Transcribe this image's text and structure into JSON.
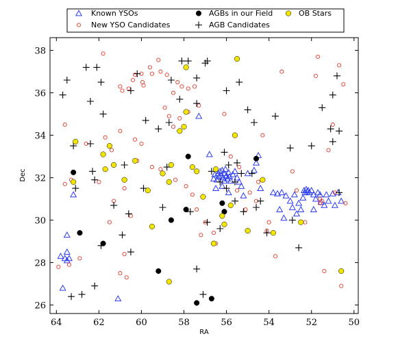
{
  "chart_data": {
    "type": "scatter",
    "title": "",
    "xlabel": "RA",
    "ylabel": "Dec",
    "xlim": [
      64.3,
      49.8
    ],
    "ylim": [
      25.6,
      38.6
    ],
    "x_ticks": [
      64,
      62,
      60,
      58,
      56,
      54,
      52,
      50
    ],
    "y_ticks": [
      26,
      28,
      30,
      32,
      34,
      36,
      38
    ],
    "grid": false,
    "legend_placement": "top-center",
    "series": [
      {
        "name": "Known YSOs",
        "marker": "triangle-open",
        "color": "#2b3cf0",
        "points": [
          [
            63.8,
            28.3
          ],
          [
            63.6,
            28.2
          ],
          [
            63.5,
            28.5
          ],
          [
            63.5,
            28.1
          ],
          [
            63.4,
            28.2
          ],
          [
            63.7,
            26.8
          ],
          [
            63.5,
            29.3
          ],
          [
            63.2,
            31.2
          ],
          [
            61.1,
            26.3
          ],
          [
            57.3,
            34.9
          ],
          [
            56.8,
            33.1
          ],
          [
            56.4,
            32.2
          ],
          [
            56.35,
            32.05
          ],
          [
            56.3,
            32.3
          ],
          [
            56.25,
            32.1
          ],
          [
            56.2,
            32.35
          ],
          [
            56.15,
            32.0
          ],
          [
            56.1,
            32.2
          ],
          [
            56.05,
            32.4
          ],
          [
            56.0,
            32.1
          ],
          [
            55.95,
            31.95
          ],
          [
            55.9,
            32.25
          ],
          [
            55.85,
            32.05
          ],
          [
            56.45,
            31.9
          ],
          [
            56.55,
            32.15
          ],
          [
            56.6,
            31.95
          ],
          [
            56.1,
            31.85
          ],
          [
            55.8,
            31.85
          ],
          [
            55.7,
            32.15
          ],
          [
            55.6,
            32.3
          ],
          [
            55.5,
            32.0
          ],
          [
            55.4,
            31.8
          ],
          [
            55.3,
            31.6
          ],
          [
            55.0,
            32.2
          ],
          [
            54.7,
            32.35
          ],
          [
            56.2,
            31.6
          ],
          [
            56.5,
            31.5
          ],
          [
            55.9,
            31.3
          ],
          [
            55.2,
            31.15
          ],
          [
            54.6,
            32.7
          ],
          [
            54.5,
            33.05
          ],
          [
            54.4,
            31.5
          ],
          [
            53.8,
            31.3
          ],
          [
            53.6,
            31.25
          ],
          [
            53.4,
            31.3
          ],
          [
            53.2,
            31.15
          ],
          [
            53.0,
            30.9
          ],
          [
            52.9,
            30.6
          ],
          [
            52.8,
            31.2
          ],
          [
            52.6,
            30.8
          ],
          [
            52.5,
            30.5
          ],
          [
            52.4,
            31.05
          ],
          [
            52.35,
            31.4
          ],
          [
            52.3,
            31.3
          ],
          [
            52.25,
            31.45
          ],
          [
            52.2,
            31.35
          ],
          [
            52.15,
            31.4
          ],
          [
            52.1,
            31.3
          ],
          [
            52.0,
            31.4
          ],
          [
            51.9,
            31.2
          ],
          [
            51.8,
            31.0
          ],
          [
            51.7,
            31.3
          ],
          [
            51.6,
            31.2
          ],
          [
            51.55,
            30.85
          ],
          [
            51.4,
            30.7
          ],
          [
            51.3,
            31.2
          ],
          [
            51.2,
            30.9
          ],
          [
            51.0,
            31.25
          ],
          [
            50.9,
            30.7
          ],
          [
            50.75,
            31.3
          ],
          [
            50.6,
            30.9
          ],
          [
            53.5,
            30.5
          ],
          [
            53.3,
            30.1
          ],
          [
            52.7,
            30.3
          ],
          [
            51.9,
            30.5
          ]
        ]
      },
      {
        "name": "New YSO Candidates",
        "marker": "circle-open",
        "color": "#e23a2a",
        "points": [
          [
            61.8,
            37.85
          ],
          [
            61.0,
            36.3
          ],
          [
            60.9,
            36.1
          ],
          [
            60.6,
            36.2
          ],
          [
            60.4,
            36.6
          ],
          [
            60.3,
            36.85
          ],
          [
            60.0,
            36.9
          ],
          [
            59.95,
            36.5
          ],
          [
            59.9,
            36.35
          ],
          [
            59.6,
            37.2
          ],
          [
            59.5,
            36.9
          ],
          [
            59.2,
            37.55
          ],
          [
            59.1,
            37.0
          ],
          [
            58.8,
            36.85
          ],
          [
            58.5,
            36.0
          ],
          [
            58.3,
            36.5
          ],
          [
            58.1,
            36.3
          ],
          [
            57.8,
            36.2
          ],
          [
            57.5,
            36.3
          ],
          [
            57.8,
            35.1
          ],
          [
            57.3,
            35.4
          ],
          [
            58.9,
            35.3
          ],
          [
            58.7,
            34.9
          ],
          [
            58.5,
            34.4
          ],
          [
            58.2,
            34.8
          ],
          [
            61.0,
            34.2
          ],
          [
            61.4,
            33.3
          ],
          [
            61.7,
            33.9
          ],
          [
            62.6,
            33.6
          ],
          [
            63.6,
            34.5
          ],
          [
            60.3,
            33.8
          ],
          [
            60.0,
            33.6
          ],
          [
            59.5,
            32.5
          ],
          [
            59.1,
            32.4
          ],
          [
            58.4,
            31.9
          ],
          [
            57.9,
            31.6
          ],
          [
            57.6,
            31.2
          ],
          [
            57.4,
            30.5
          ],
          [
            57.0,
            29.9
          ],
          [
            57.2,
            29.3
          ],
          [
            56.6,
            29.4
          ],
          [
            56.5,
            28.9
          ],
          [
            55.6,
            34.0
          ],
          [
            55.8,
            33.0
          ],
          [
            55.4,
            32.5
          ],
          [
            55.5,
            31.4
          ],
          [
            54.9,
            31.3
          ],
          [
            55.1,
            30.5
          ],
          [
            54.6,
            30.9
          ],
          [
            54.3,
            34.0
          ],
          [
            53.4,
            37.0
          ],
          [
            51.7,
            37.7
          ],
          [
            51.8,
            36.8
          ],
          [
            50.7,
            37.3
          ],
          [
            50.5,
            36.4
          ],
          [
            51.0,
            34.5
          ],
          [
            51.2,
            33.3
          ],
          [
            51.6,
            31.0
          ],
          [
            51.5,
            30.9
          ],
          [
            51.6,
            30.8
          ],
          [
            50.9,
            31.3
          ],
          [
            50.4,
            30.8
          ],
          [
            51.4,
            27.6
          ],
          [
            50.6,
            26.9
          ],
          [
            54.0,
            29.9
          ],
          [
            54.1,
            29.5
          ],
          [
            53.7,
            28.3
          ],
          [
            52.3,
            29.9
          ],
          [
            60.5,
            30.2
          ],
          [
            60.8,
            28.4
          ],
          [
            61.0,
            27.5
          ],
          [
            60.7,
            27.3
          ],
          [
            62.9,
            28.2
          ],
          [
            63.9,
            27.8
          ],
          [
            61.3,
            30.9
          ],
          [
            61.5,
            29.9
          ],
          [
            60.8,
            31.5
          ],
          [
            62.0,
            31.8
          ],
          [
            63.3,
            31.9
          ],
          [
            63.6,
            31.7
          ],
          [
            63.4,
            27.9
          ],
          [
            60.2,
            32.8
          ],
          [
            56.1,
            35.0
          ],
          [
            54.5,
            31.8
          ],
          [
            52.9,
            32.3
          ],
          [
            52.7,
            31.4
          ]
        ]
      },
      {
        "name": "AGBs in our Field",
        "marker": "filled-circle",
        "color": "#000000",
        "points": [
          [
            63.2,
            32.25
          ],
          [
            62.9,
            29.4
          ],
          [
            61.8,
            28.9
          ],
          [
            59.2,
            27.6
          ],
          [
            58.6,
            30.0
          ],
          [
            57.9,
            30.5
          ],
          [
            57.8,
            33.0
          ],
          [
            57.4,
            26.1
          ],
          [
            56.7,
            26.3
          ],
          [
            56.2,
            30.8
          ],
          [
            56.1,
            30.4
          ],
          [
            54.6,
            32.9
          ]
        ]
      },
      {
        "name": "AGB Candidates",
        "marker": "plus",
        "color": "#000000",
        "points": [
          [
            63.7,
            35.9
          ],
          [
            63.5,
            36.6
          ],
          [
            62.6,
            37.2
          ],
          [
            62.1,
            37.2
          ],
          [
            61.9,
            36.5
          ],
          [
            62.4,
            35.6
          ],
          [
            61.8,
            35.0
          ],
          [
            63.2,
            33.5
          ],
          [
            62.4,
            33.6
          ],
          [
            62.2,
            31.9
          ],
          [
            63.1,
            31.5
          ],
          [
            62.3,
            32.3
          ],
          [
            61.3,
            30.7
          ],
          [
            60.6,
            30.3
          ],
          [
            60.5,
            28.5
          ],
          [
            61.9,
            28.8
          ],
          [
            60.9,
            29.3
          ],
          [
            62.2,
            26.9
          ],
          [
            62.8,
            26.5
          ],
          [
            63.3,
            26.4
          ],
          [
            60.8,
            32.6
          ],
          [
            60.5,
            36.1
          ],
          [
            60.2,
            36.9
          ],
          [
            59.9,
            31.5
          ],
          [
            59.8,
            34.7
          ],
          [
            59.2,
            34.3
          ],
          [
            58.7,
            34.6
          ],
          [
            58.1,
            37.5
          ],
          [
            57.8,
            37.5
          ],
          [
            57.4,
            36.7
          ],
          [
            57.0,
            37.4
          ],
          [
            58.6,
            36.6
          ],
          [
            58.2,
            35.7
          ],
          [
            57.4,
            35.5
          ],
          [
            56.9,
            37.5
          ],
          [
            56.0,
            36.1
          ],
          [
            55.4,
            36.5
          ],
          [
            55.0,
            35.2
          ],
          [
            54.7,
            34.6
          ],
          [
            53.7,
            34.9
          ],
          [
            53.0,
            33.4
          ],
          [
            52.9,
            30.0
          ],
          [
            52.6,
            28.7
          ],
          [
            54.1,
            29.4
          ],
          [
            54.4,
            30.9
          ],
          [
            54.6,
            30.6
          ],
          [
            55.2,
            30.4
          ],
          [
            55.6,
            30.9
          ],
          [
            56.3,
            29.6
          ],
          [
            56.9,
            29.9
          ],
          [
            57.4,
            27.7
          ],
          [
            57.1,
            26.5
          ],
          [
            55.5,
            32.7
          ],
          [
            55.3,
            32.2
          ],
          [
            54.8,
            32.2
          ],
          [
            55.9,
            32.6
          ],
          [
            56.7,
            32.3
          ],
          [
            56.3,
            31.8
          ],
          [
            56.0,
            31.5
          ],
          [
            55.6,
            31.8
          ],
          [
            56.1,
            33.2
          ],
          [
            52.0,
            33.5
          ],
          [
            51.5,
            35.3
          ],
          [
            51.0,
            35.9
          ],
          [
            50.8,
            36.8
          ],
          [
            50.7,
            34.2
          ],
          [
            51.1,
            34.3
          ],
          [
            51.0,
            33.7
          ],
          [
            50.7,
            31.3
          ],
          [
            59.0,
            30.6
          ],
          [
            58.8,
            32.5
          ],
          [
            57.7,
            30.4
          ]
        ]
      },
      {
        "name": "OB Stars",
        "marker": "filled-circle",
        "color": "#f2e600",
        "points": [
          [
            63.1,
            33.7
          ],
          [
            63.2,
            31.8
          ],
          [
            61.8,
            33.1
          ],
          [
            61.7,
            32.4
          ],
          [
            61.3,
            32.6
          ],
          [
            61.5,
            33.5
          ],
          [
            60.8,
            31.9
          ],
          [
            60.3,
            32.8
          ],
          [
            59.7,
            31.4
          ],
          [
            59.5,
            29.7
          ],
          [
            59.0,
            32.2
          ],
          [
            58.7,
            31.8
          ],
          [
            58.6,
            32.6
          ],
          [
            58.2,
            34.2
          ],
          [
            58.0,
            34.4
          ],
          [
            57.9,
            37.2
          ],
          [
            57.9,
            35.1
          ],
          [
            58.7,
            27.1
          ],
          [
            57.6,
            32.5
          ],
          [
            57.4,
            32.3
          ],
          [
            57.1,
            31.1
          ],
          [
            56.6,
            28.9
          ],
          [
            56.5,
            32.4
          ],
          [
            56.2,
            30.2
          ],
          [
            56.1,
            29.8
          ],
          [
            55.8,
            30.7
          ],
          [
            55.5,
            37.6
          ],
          [
            55.6,
            34.0
          ],
          [
            55.0,
            29.5
          ],
          [
            54.3,
            31.9
          ],
          [
            53.8,
            29.4
          ],
          [
            52.5,
            29.9
          ],
          [
            50.6,
            27.6
          ]
        ]
      }
    ]
  }
}
